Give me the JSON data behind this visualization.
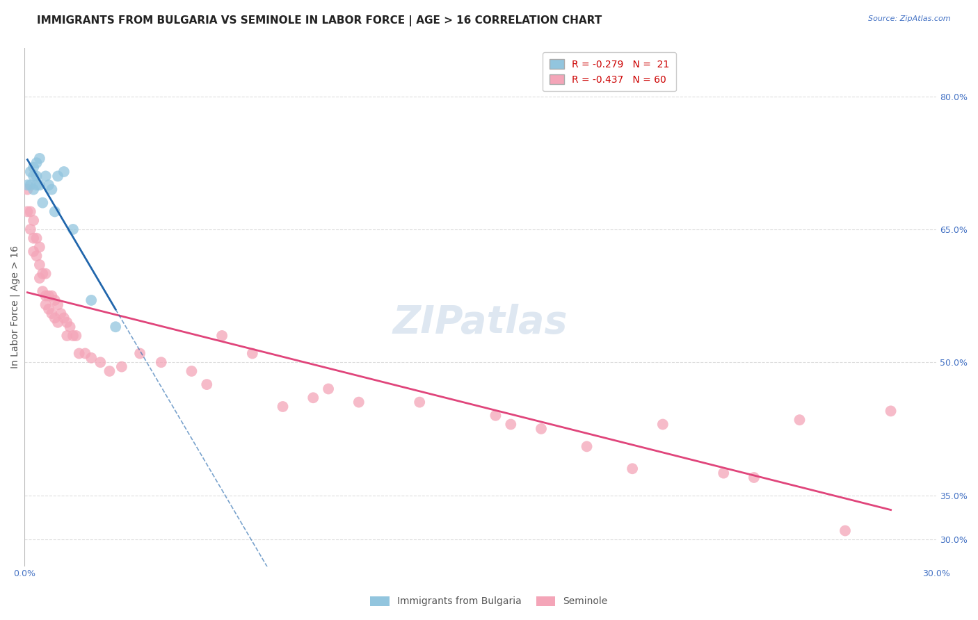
{
  "title": "IMMIGRANTS FROM BULGARIA VS SEMINOLE IN LABOR FORCE | AGE > 16 CORRELATION CHART",
  "source": "Source: ZipAtlas.com",
  "ylabel": "In Labor Force | Age > 16",
  "xlim": [
    0.0,
    0.3
  ],
  "ylim": [
    0.27,
    0.855
  ],
  "right_yticks": [
    0.3,
    0.35,
    0.5,
    0.65,
    0.8
  ],
  "right_yticklabels": [
    "30.0%",
    "35.0%",
    "50.0%",
    "65.0%",
    "80.0%"
  ],
  "xticks": [
    0.0,
    0.05,
    0.1,
    0.15,
    0.2,
    0.25,
    0.3
  ],
  "xticklabels": [
    "0.0%",
    "",
    "",
    "",
    "",
    "",
    "30.0%"
  ],
  "bulgaria_color": "#92c5de",
  "seminole_color": "#f4a5b8",
  "trendline_bulgaria_color": "#2166ac",
  "trendline_seminole_color": "#e0457b",
  "background_color": "#ffffff",
  "watermark": "ZIPatlas",
  "legend_R_bulgaria": "R = -0.279",
  "legend_N_bulgaria": "N =  21",
  "legend_R_seminole": "R = -0.437",
  "legend_N_seminole": "N = 60",
  "bulgaria_x": [
    0.001,
    0.002,
    0.002,
    0.003,
    0.003,
    0.003,
    0.004,
    0.004,
    0.004,
    0.005,
    0.005,
    0.006,
    0.007,
    0.008,
    0.009,
    0.01,
    0.011,
    0.013,
    0.016,
    0.022,
    0.03
  ],
  "bulgaria_y": [
    0.7,
    0.715,
    0.7,
    0.72,
    0.71,
    0.695,
    0.725,
    0.71,
    0.7,
    0.73,
    0.7,
    0.68,
    0.71,
    0.7,
    0.695,
    0.67,
    0.71,
    0.715,
    0.65,
    0.57,
    0.54
  ],
  "seminole_x": [
    0.001,
    0.001,
    0.002,
    0.002,
    0.003,
    0.003,
    0.003,
    0.004,
    0.004,
    0.005,
    0.005,
    0.005,
    0.006,
    0.006,
    0.007,
    0.007,
    0.007,
    0.008,
    0.008,
    0.009,
    0.009,
    0.01,
    0.01,
    0.011,
    0.011,
    0.012,
    0.013,
    0.014,
    0.014,
    0.015,
    0.016,
    0.017,
    0.018,
    0.02,
    0.022,
    0.025,
    0.028,
    0.032,
    0.038,
    0.045,
    0.055,
    0.06,
    0.065,
    0.075,
    0.085,
    0.095,
    0.1,
    0.11,
    0.13,
    0.155,
    0.16,
    0.17,
    0.185,
    0.2,
    0.21,
    0.23,
    0.24,
    0.255,
    0.27,
    0.285
  ],
  "seminole_y": [
    0.695,
    0.67,
    0.67,
    0.65,
    0.66,
    0.64,
    0.625,
    0.64,
    0.62,
    0.63,
    0.61,
    0.595,
    0.6,
    0.58,
    0.6,
    0.575,
    0.565,
    0.575,
    0.56,
    0.575,
    0.555,
    0.57,
    0.55,
    0.565,
    0.545,
    0.555,
    0.55,
    0.545,
    0.53,
    0.54,
    0.53,
    0.53,
    0.51,
    0.51,
    0.505,
    0.5,
    0.49,
    0.495,
    0.51,
    0.5,
    0.49,
    0.475,
    0.53,
    0.51,
    0.45,
    0.46,
    0.47,
    0.455,
    0.455,
    0.44,
    0.43,
    0.425,
    0.405,
    0.38,
    0.43,
    0.375,
    0.37,
    0.435,
    0.31,
    0.445
  ],
  "grid_color": "#dddddd",
  "title_fontsize": 11,
  "axis_label_fontsize": 10,
  "tick_fontsize": 9,
  "legend_fontsize": 10,
  "watermark_fontsize": 40,
  "watermark_color": "#c8d8e8",
  "watermark_alpha": 0.6
}
